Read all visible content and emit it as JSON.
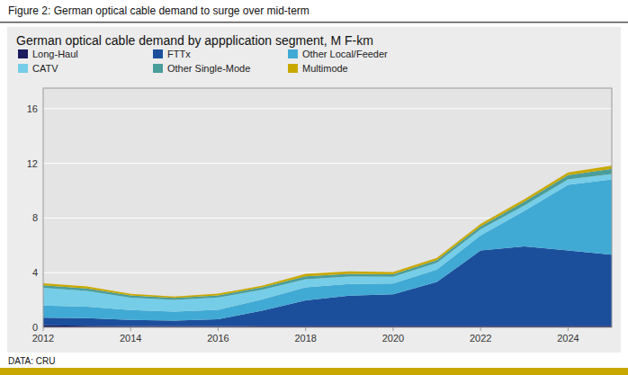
{
  "chart_data": {
    "type": "area",
    "stacked": true,
    "title": "Figure 2: German optical cable demand to surge over mid-term",
    "subtitle": "German optical cable demand by appplication segment, M F-km",
    "annotations": [
      "DATA: CRU"
    ],
    "x": [
      2012,
      2013,
      2014,
      2015,
      2016,
      2017,
      2018,
      2019,
      2020,
      2021,
      2022,
      2023,
      2024,
      2025
    ],
    "series": [
      {
        "name": "Long-Haul",
        "color": "#1a1a5e",
        "values": [
          0.15,
          0.12,
          0.1,
          0.1,
          0.1,
          0.12,
          0.12,
          0.12,
          0.12,
          0.12,
          0.12,
          0.12,
          0.12,
          0.12
        ]
      },
      {
        "name": "FTTx",
        "color": "#1b4f9c",
        "values": [
          0.55,
          0.55,
          0.45,
          0.4,
          0.5,
          1.1,
          1.85,
          2.2,
          2.3,
          3.2,
          5.5,
          5.8,
          5.5,
          5.2
        ]
      },
      {
        "name": "Other Local/Feeder",
        "color": "#41aad4",
        "values": [
          0.9,
          0.85,
          0.72,
          0.65,
          0.68,
          0.82,
          0.95,
          0.85,
          0.78,
          0.9,
          1.1,
          2.6,
          4.8,
          5.5
        ]
      },
      {
        "name": "CATV",
        "color": "#75cde8",
        "values": [
          1.3,
          1.15,
          0.9,
          0.85,
          0.9,
          0.7,
          0.6,
          0.55,
          0.5,
          0.5,
          0.45,
          0.4,
          0.4,
          0.4
        ]
      },
      {
        "name": "Other Single-Mode",
        "color": "#4a9d9a",
        "values": [
          0.18,
          0.18,
          0.16,
          0.15,
          0.16,
          0.18,
          0.22,
          0.2,
          0.18,
          0.2,
          0.22,
          0.28,
          0.32,
          0.38
        ]
      },
      {
        "name": "Multimode",
        "color": "#c8a800",
        "values": [
          0.15,
          0.14,
          0.12,
          0.11,
          0.12,
          0.13,
          0.18,
          0.18,
          0.16,
          0.16,
          0.17,
          0.18,
          0.19,
          0.22
        ]
      }
    ],
    "xlim": [
      2012,
      2025
    ],
    "xticks": [
      2012,
      2014,
      2016,
      2018,
      2020,
      2022,
      2024
    ],
    "ylim": [
      0,
      17.5
    ],
    "yticks": [
      0,
      4,
      8,
      12,
      16
    ],
    "grid": true,
    "legend": "top"
  }
}
